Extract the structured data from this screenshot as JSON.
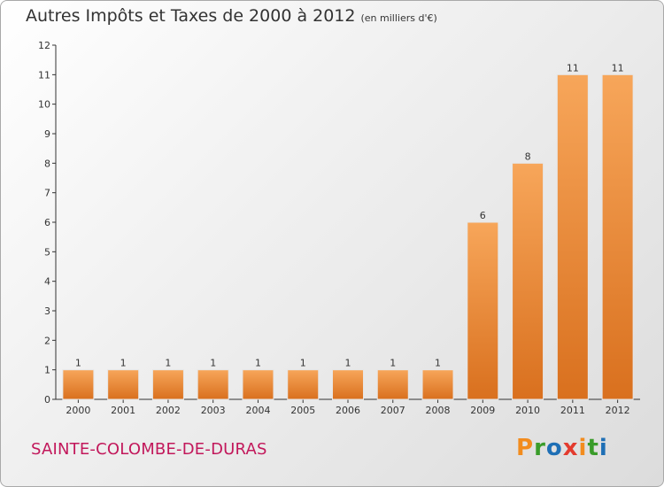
{
  "header": {
    "title": "Autres Impôts et Taxes de 2000 à 2012",
    "unit_label": "(en milliers d'€)"
  },
  "footer": {
    "commune": "SAINTE-COLOMBE-DE-DURAS",
    "logo_text": "Proxiti"
  },
  "colors": {
    "bar_light": "#f7a65a",
    "bar_dark": "#d9701e",
    "logo_letters": [
      "#f28c1e",
      "#3a9c2a",
      "#1e6fb5",
      "#e33b2e",
      "#f28c1e",
      "#3a9c2a",
      "#1e6fb5"
    ]
  },
  "chart_data": {
    "type": "bar",
    "categories": [
      "2000",
      "2001",
      "2002",
      "2003",
      "2004",
      "2005",
      "2006",
      "2007",
      "2008",
      "2009",
      "2010",
      "2011",
      "2012"
    ],
    "values": [
      1,
      1,
      1,
      1,
      1,
      1,
      1,
      1,
      1,
      6,
      8,
      11,
      11
    ],
    "data_labels": [
      "1",
      "1",
      "1",
      "1",
      "1",
      "1",
      "1",
      "1",
      "1",
      "6",
      "8",
      "11",
      "11"
    ],
    "yticks": [
      "0",
      "1",
      "2",
      "3",
      "4",
      "5",
      "6",
      "7",
      "8",
      "9",
      "10",
      "11",
      "12"
    ],
    "ylim": [
      0,
      12
    ],
    "title": "Autres Impôts et Taxes de 2000 à 2012",
    "xlabel": "",
    "ylabel": "",
    "grid": false,
    "legend": "none"
  }
}
